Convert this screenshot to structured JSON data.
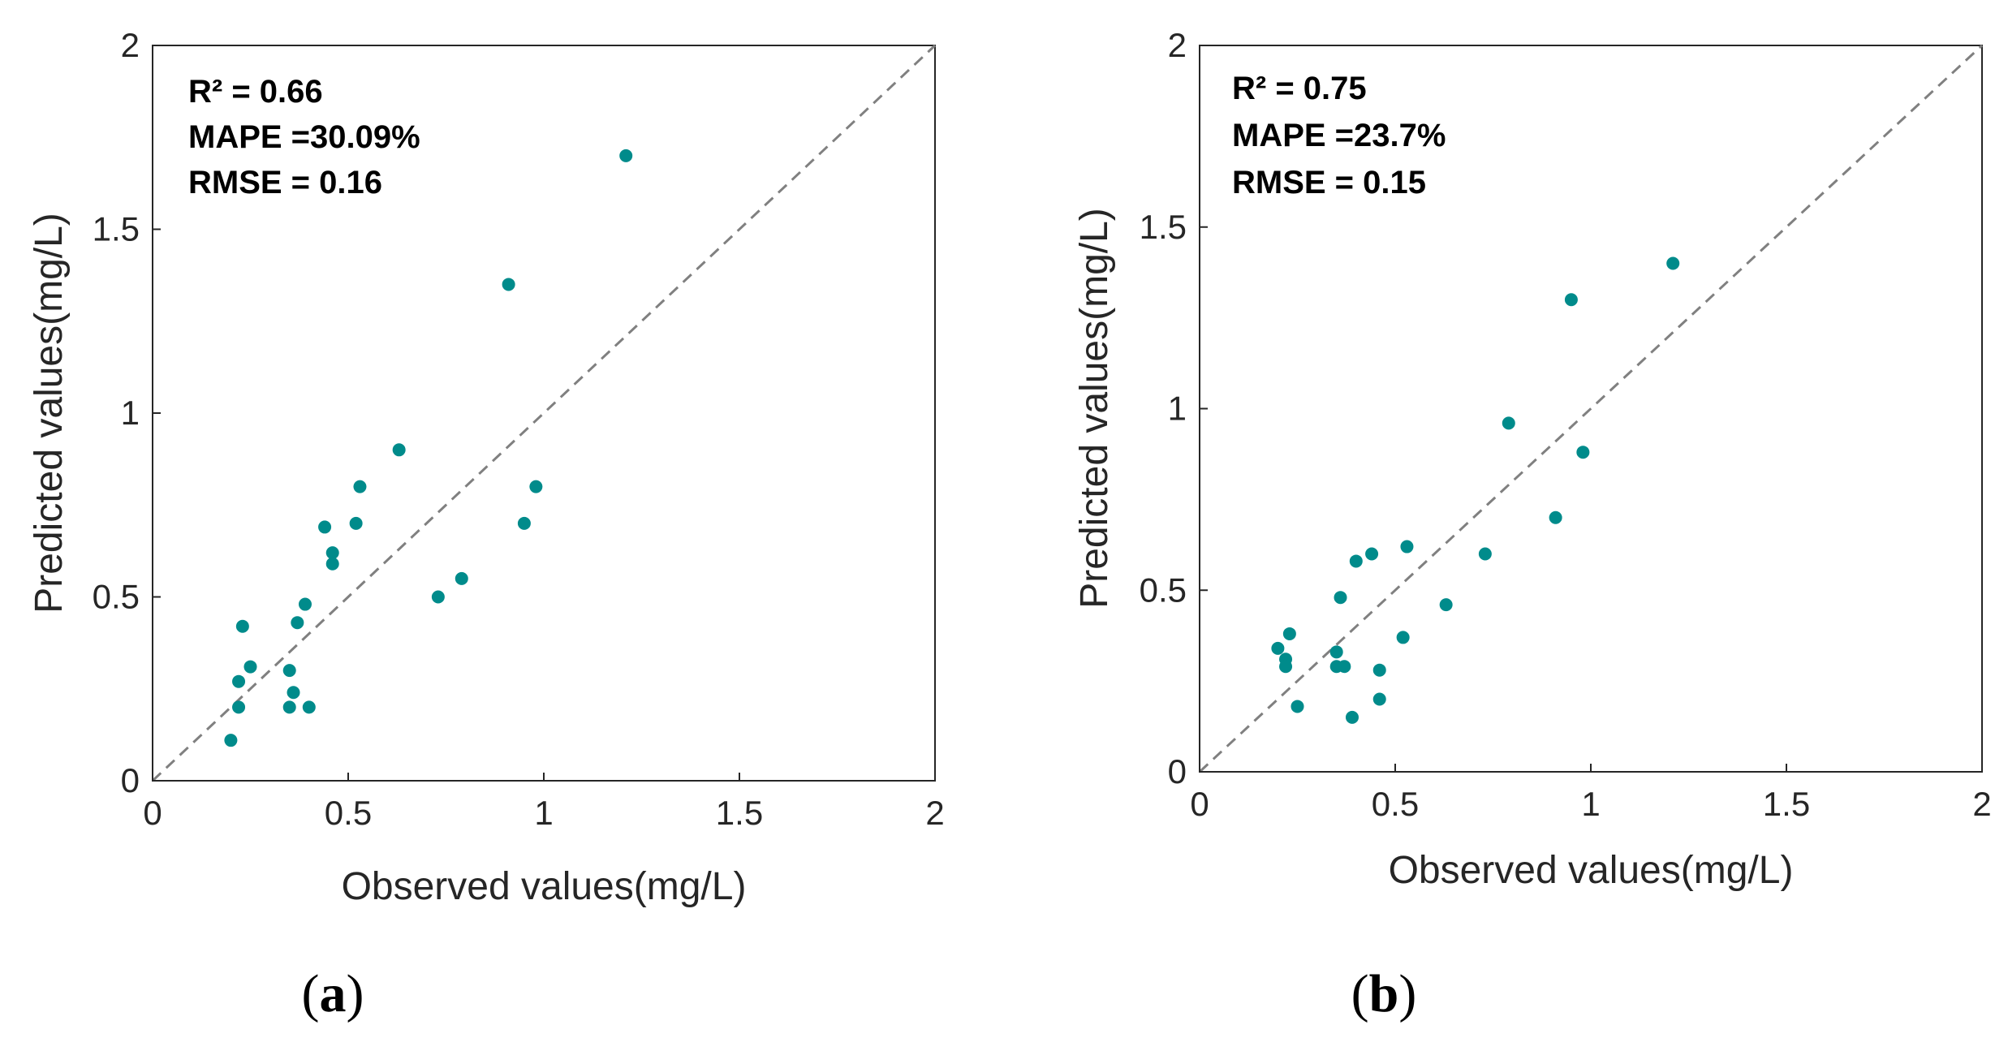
{
  "chart_data": [
    {
      "type": "scatter",
      "panel": "(a)",
      "panel_letter": "a",
      "xlabel": "Observed values(mg/L)",
      "ylabel": "Predicted values(mg/L)",
      "xlim": [
        0,
        2
      ],
      "ylim": [
        0,
        2
      ],
      "xticks": [
        "0",
        "0.5",
        "1",
        "1.5",
        "2"
      ],
      "yticks": [
        "0",
        "0.5",
        "1",
        "1.5",
        "2"
      ],
      "reference_line": "1:1 dashed",
      "stats": {
        "r2_label": "R² = 0.66",
        "mape_label": "MAPE =30.09%",
        "rmse_label": "RMSE = 0.16"
      },
      "marker_color": "#008b8b",
      "points": [
        {
          "x": 0.2,
          "y": 0.11
        },
        {
          "x": 0.22,
          "y": 0.27
        },
        {
          "x": 0.22,
          "y": 0.2
        },
        {
          "x": 0.23,
          "y": 0.42
        },
        {
          "x": 0.25,
          "y": 0.31
        },
        {
          "x": 0.35,
          "y": 0.2
        },
        {
          "x": 0.35,
          "y": 0.3
        },
        {
          "x": 0.36,
          "y": 0.24
        },
        {
          "x": 0.37,
          "y": 0.43
        },
        {
          "x": 0.39,
          "y": 0.48
        },
        {
          "x": 0.4,
          "y": 0.2
        },
        {
          "x": 0.44,
          "y": 0.69
        },
        {
          "x": 0.46,
          "y": 0.62
        },
        {
          "x": 0.46,
          "y": 0.59
        },
        {
          "x": 0.52,
          "y": 0.7
        },
        {
          "x": 0.53,
          "y": 0.8
        },
        {
          "x": 0.63,
          "y": 0.9
        },
        {
          "x": 0.73,
          "y": 0.5
        },
        {
          "x": 0.79,
          "y": 0.55
        },
        {
          "x": 0.91,
          "y": 1.35
        },
        {
          "x": 0.95,
          "y": 0.7
        },
        {
          "x": 0.98,
          "y": 0.8
        },
        {
          "x": 1.21,
          "y": 1.7
        }
      ]
    },
    {
      "type": "scatter",
      "panel": "(b)",
      "panel_letter": "b",
      "xlabel": "Observed values(mg/L)",
      "ylabel": "Predicted values(mg/L)",
      "xlim": [
        0,
        2
      ],
      "ylim": [
        0,
        2
      ],
      "xticks": [
        "0",
        "0.5",
        "1",
        "1.5",
        "2"
      ],
      "yticks": [
        "0",
        "0.5",
        "1",
        "1.5",
        "2"
      ],
      "reference_line": "1:1 dashed",
      "stats": {
        "r2_label": "R² = 0.75",
        "mape_label": "MAPE =23.7%",
        "rmse_label": "RMSE = 0.15"
      },
      "marker_color": "#008b8b",
      "points": [
        {
          "x": 0.2,
          "y": 0.34
        },
        {
          "x": 0.22,
          "y": 0.31
        },
        {
          "x": 0.22,
          "y": 0.29
        },
        {
          "x": 0.23,
          "y": 0.38
        },
        {
          "x": 0.25,
          "y": 0.18
        },
        {
          "x": 0.35,
          "y": 0.33
        },
        {
          "x": 0.35,
          "y": 0.29
        },
        {
          "x": 0.36,
          "y": 0.48
        },
        {
          "x": 0.37,
          "y": 0.29
        },
        {
          "x": 0.39,
          "y": 0.15
        },
        {
          "x": 0.4,
          "y": 0.58
        },
        {
          "x": 0.44,
          "y": 0.6
        },
        {
          "x": 0.46,
          "y": 0.28
        },
        {
          "x": 0.46,
          "y": 0.2
        },
        {
          "x": 0.52,
          "y": 0.37
        },
        {
          "x": 0.53,
          "y": 0.62
        },
        {
          "x": 0.63,
          "y": 0.46
        },
        {
          "x": 0.73,
          "y": 0.6
        },
        {
          "x": 0.79,
          "y": 0.96
        },
        {
          "x": 0.91,
          "y": 0.7
        },
        {
          "x": 0.95,
          "y": 1.3
        },
        {
          "x": 0.98,
          "y": 0.88
        },
        {
          "x": 1.21,
          "y": 1.4
        }
      ]
    }
  ]
}
